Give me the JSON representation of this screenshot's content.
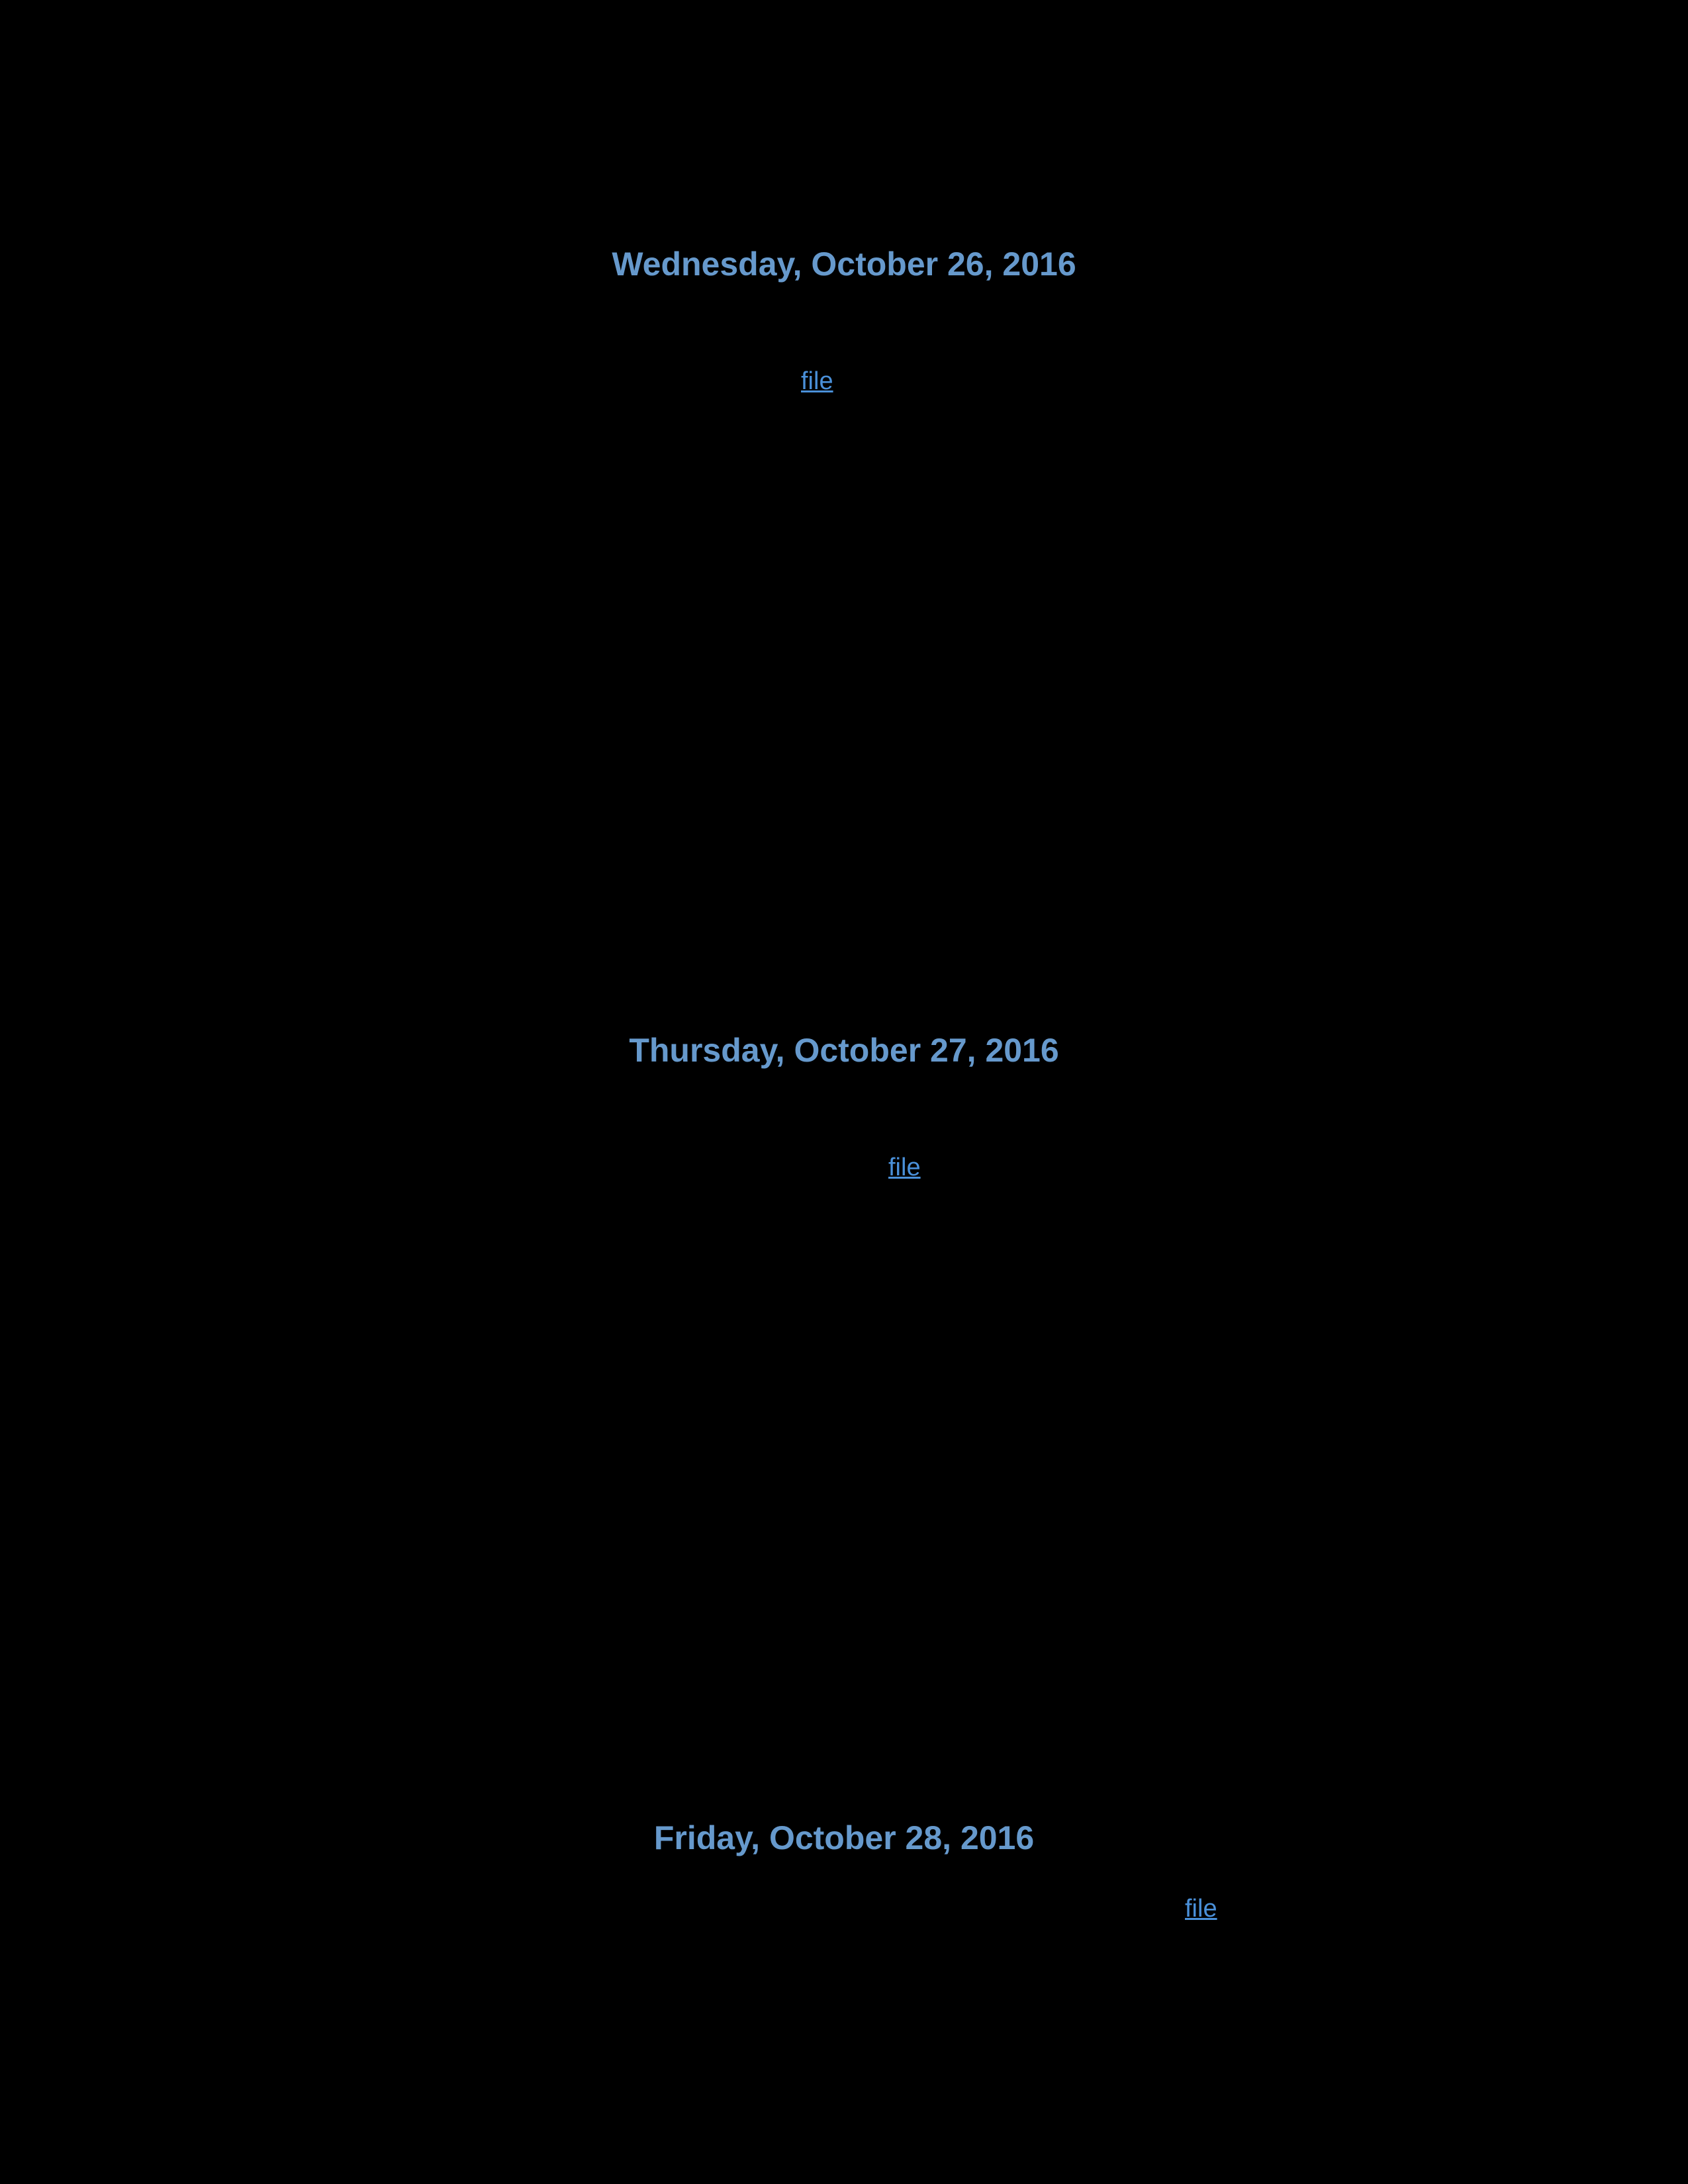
{
  "background_color": "#000000",
  "heading_color": "#6699cc",
  "link_color": "#4a90d9",
  "heading_fontsize": 50,
  "link_fontsize": 38,
  "entries": [
    {
      "date": "Wednesday, October 26, 2016",
      "link_label": "file"
    },
    {
      "date": "Thursday, October 27, 2016",
      "link_label": "file"
    },
    {
      "date": "Friday, October 28, 2016",
      "link_label": "file"
    }
  ]
}
